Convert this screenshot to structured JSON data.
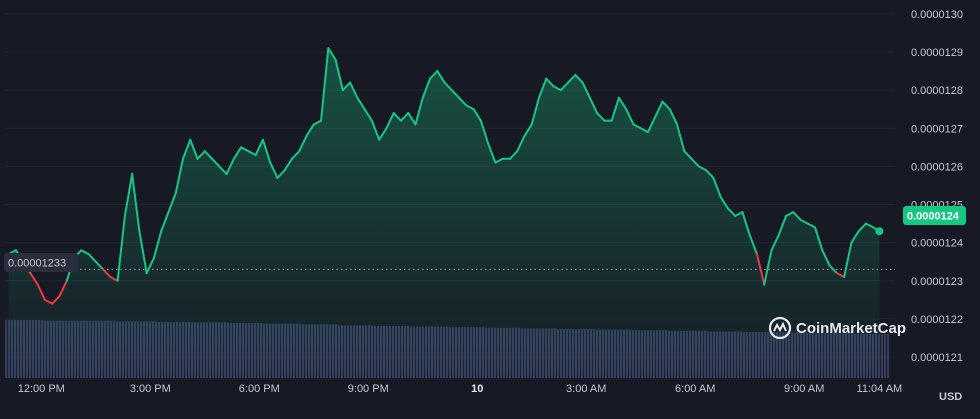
{
  "chart_data": {
    "type": "line",
    "watermark": "CoinMarketCap",
    "currency": "USD",
    "reference_label": "0.00001233",
    "reference_value": 1.233e-05,
    "current_price_label": "0.0000124",
    "current_price": 1.24e-05,
    "ylim": [
      1.205e-05,
      1.3e-05
    ],
    "y_ticks": [
      {
        "value": 1.21e-05,
        "label": "0.0000121"
      },
      {
        "value": 1.22e-05,
        "label": "0.0000122"
      },
      {
        "value": 1.23e-05,
        "label": "0.0000123"
      },
      {
        "value": 1.24e-05,
        "label": "0.0000124"
      },
      {
        "value": 1.25e-05,
        "label": "0.0000125"
      },
      {
        "value": 1.26e-05,
        "label": "0.0000126"
      },
      {
        "value": 1.27e-05,
        "label": "0.0000127"
      },
      {
        "value": 1.28e-05,
        "label": "0.0000128"
      },
      {
        "value": 1.29e-05,
        "label": "0.0000129"
      },
      {
        "value": 1.3e-05,
        "label": "0.0000130"
      }
    ],
    "x_ticks": [
      {
        "t": 0.5,
        "label": "12:00 PM"
      },
      {
        "t": 3.5,
        "label": "3:00 PM"
      },
      {
        "t": 6.5,
        "label": "6:00 PM"
      },
      {
        "t": 9.5,
        "label": "9:00 PM"
      },
      {
        "t": 12.5,
        "label": "10"
      },
      {
        "t": 15.5,
        "label": "3:00 AM"
      },
      {
        "t": 18.5,
        "label": "6:00 AM"
      },
      {
        "t": 21.5,
        "label": "9:00 AM"
      },
      {
        "t": 23.57,
        "label": "11:04 AM"
      }
    ],
    "x_range_hours": [
      -0.5,
      24.0
    ],
    "series": [
      {
        "x": [
          -0.4,
          -0.2,
          0,
          0.2,
          0.4,
          0.6,
          0.8,
          1.0,
          1.2,
          1.4,
          1.6,
          1.8,
          2.0,
          2.2,
          2.4,
          2.6,
          2.8,
          3.0,
          3.2,
          3.4,
          3.6,
          3.8,
          4.0,
          4.2,
          4.4,
          4.6,
          4.8,
          5.0,
          5.2,
          5.4,
          5.6,
          5.8,
          6.0,
          6.2,
          6.4,
          6.6,
          6.8,
          7.0,
          7.2,
          7.4,
          7.6,
          7.8,
          8.0,
          8.2,
          8.4,
          8.6,
          8.8,
          9.0,
          9.2,
          9.4,
          9.6,
          9.8,
          10.0,
          10.2,
          10.4,
          10.6,
          10.8,
          11.0,
          11.2,
          11.4,
          11.6,
          11.8,
          12.0,
          12.2,
          12.4,
          12.6,
          12.8,
          13.0,
          13.2,
          13.4,
          13.6,
          13.8,
          14.0,
          14.2,
          14.4,
          14.6,
          14.8,
          15.0,
          15.2,
          15.4,
          15.6,
          15.8,
          16.0,
          16.2,
          16.4,
          16.6,
          16.8,
          17.0,
          17.2,
          17.4,
          17.6,
          17.8,
          18.0,
          18.2,
          18.4,
          18.6,
          18.8,
          19.0,
          19.2,
          19.4,
          19.6,
          19.8,
          20.0,
          20.2,
          20.4,
          20.6,
          20.8,
          21.0,
          21.2,
          21.4,
          21.6,
          21.8,
          22.0,
          22.2,
          22.4,
          22.6,
          22.8,
          23.0,
          23.2,
          23.4,
          23.57
        ],
        "values": [
          1.237e-05,
          1.238e-05,
          1.235e-05,
          1.232e-05,
          1.229e-05,
          1.225e-05,
          1.224e-05,
          1.226e-05,
          1.23e-05,
          1.236e-05,
          1.238e-05,
          1.237e-05,
          1.235e-05,
          1.233e-05,
          1.231e-05,
          1.23e-05,
          1.247e-05,
          1.258e-05,
          1.243e-05,
          1.232e-05,
          1.236e-05,
          1.243e-05,
          1.248e-05,
          1.253e-05,
          1.262e-05,
          1.267e-05,
          1.262e-05,
          1.264e-05,
          1.262e-05,
          1.26e-05,
          1.258e-05,
          1.262e-05,
          1.265e-05,
          1.264e-05,
          1.263e-05,
          1.267e-05,
          1.261e-05,
          1.257e-05,
          1.259e-05,
          1.262e-05,
          1.264e-05,
          1.268e-05,
          1.271e-05,
          1.272e-05,
          1.291e-05,
          1.288e-05,
          1.28e-05,
          1.282e-05,
          1.278e-05,
          1.275e-05,
          1.272e-05,
          1.267e-05,
          1.27e-05,
          1.274e-05,
          1.272e-05,
          1.274e-05,
          1.271e-05,
          1.278e-05,
          1.283e-05,
          1.285e-05,
          1.282e-05,
          1.28e-05,
          1.278e-05,
          1.276e-05,
          1.275e-05,
          1.272e-05,
          1.266e-05,
          1.261e-05,
          1.262e-05,
          1.262e-05,
          1.264e-05,
          1.268e-05,
          1.271e-05,
          1.278e-05,
          1.283e-05,
          1.281e-05,
          1.28e-05,
          1.282e-05,
          1.284e-05,
          1.282e-05,
          1.278e-05,
          1.274e-05,
          1.272e-05,
          1.272e-05,
          1.278e-05,
          1.275e-05,
          1.271e-05,
          1.27e-05,
          1.269e-05,
          1.273e-05,
          1.277e-05,
          1.275e-05,
          1.271e-05,
          1.264e-05,
          1.262e-05,
          1.26e-05,
          1.259e-05,
          1.257e-05,
          1.252e-05,
          1.249e-05,
          1.247e-05,
          1.248e-05,
          1.242e-05,
          1.237e-05,
          1.229e-05,
          1.238e-05,
          1.242e-05,
          1.247e-05,
          1.248e-05,
          1.246e-05,
          1.245e-05,
          1.244e-05,
          1.238e-05,
          1.234e-05,
          1.232e-05,
          1.231e-05,
          1.24e-05,
          1.243e-05,
          1.245e-05,
          1.244e-05,
          1.243e-05
        ]
      }
    ],
    "volume": {
      "note_levels": [
        0.97,
        0.96,
        0.96,
        0.95,
        0.94,
        0.93,
        0.92,
        0.91,
        0.9,
        0.88,
        0.87,
        0.86,
        0.85,
        0.84,
        0.83,
        0.82,
        0.81,
        0.8,
        0.79,
        0.78,
        0.77,
        0.76,
        0.75,
        0.74,
        0.72
      ],
      "color": "#3b4366"
    },
    "colors": {
      "up": "#16c784",
      "down": "#ea3943",
      "background": "#171924",
      "grid": "#222531",
      "price_badge": "#16c784",
      "reference_badge": "#2b2e3a"
    },
    "grid": true
  }
}
